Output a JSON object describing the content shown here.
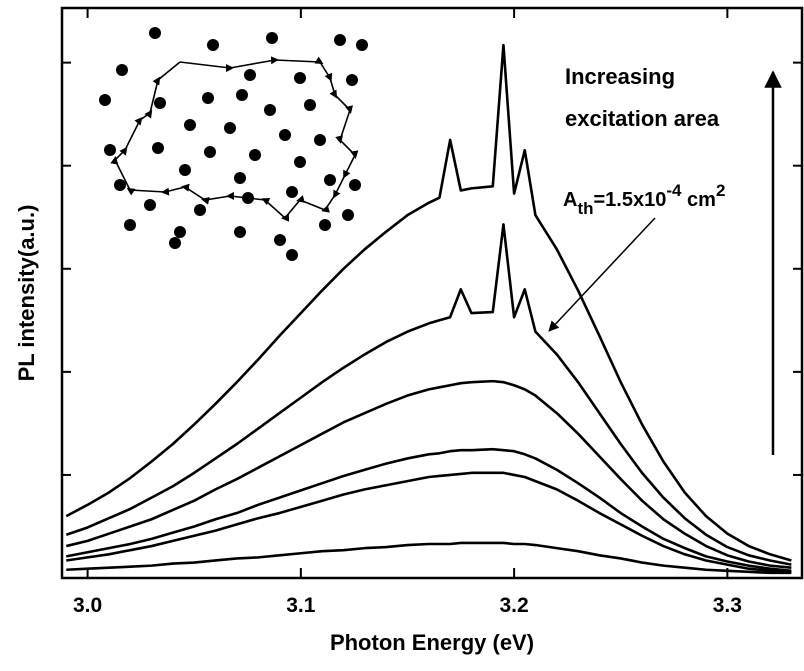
{
  "chart_data": {
    "type": "line",
    "x_label": "Photon Energy (eV)",
    "y_label": "PL intensity(a.u.)",
    "annotations": {
      "arrow_text": [
        "Increasing",
        "excitation area"
      ],
      "threshold_parts": [
        "A",
        "th",
        "=1.5x10",
        "-4",
        " cm",
        "2"
      ]
    },
    "x": [
      2.99,
      3.0,
      3.01,
      3.02,
      3.03,
      3.04,
      3.05,
      3.06,
      3.07,
      3.08,
      3.09,
      3.1,
      3.11,
      3.12,
      3.13,
      3.14,
      3.15,
      3.16,
      3.165,
      3.17,
      3.175,
      3.18,
      3.19,
      3.195,
      3.2,
      3.205,
      3.21,
      3.22,
      3.23,
      3.24,
      3.25,
      3.26,
      3.27,
      3.28,
      3.29,
      3.3,
      3.31,
      3.32,
      3.33
    ],
    "series": [
      {
        "color": "#000000",
        "values": [
          0.6,
          0.71,
          0.83,
          0.97,
          1.13,
          1.3,
          1.49,
          1.69,
          1.9,
          2.12,
          2.35,
          2.57,
          2.79,
          3.0,
          3.19,
          3.36,
          3.52,
          3.64,
          3.69,
          4.25,
          3.76,
          3.78,
          3.8,
          5.17,
          3.73,
          4.15,
          3.52,
          3.19,
          2.79,
          2.35,
          1.9,
          1.49,
          1.13,
          0.83,
          0.6,
          0.43,
          0.31,
          0.23,
          0.17
        ]
      },
      {
        "color": "#000000",
        "values": [
          0.42,
          0.49,
          0.58,
          0.67,
          0.78,
          0.89,
          1.02,
          1.16,
          1.3,
          1.45,
          1.6,
          1.75,
          1.9,
          2.04,
          2.17,
          2.29,
          2.39,
          2.47,
          2.5,
          2.53,
          2.8,
          2.57,
          2.58,
          3.43,
          2.53,
          2.8,
          2.39,
          2.17,
          1.9,
          1.6,
          1.3,
          1.02,
          0.78,
          0.58,
          0.42,
          0.3,
          0.22,
          0.17,
          0.13
        ]
      },
      {
        "color": "#000000",
        "values": [
          0.31,
          0.36,
          0.43,
          0.5,
          0.57,
          0.66,
          0.75,
          0.86,
          0.96,
          1.07,
          1.18,
          1.29,
          1.4,
          1.51,
          1.6,
          1.69,
          1.77,
          1.83,
          1.85,
          1.87,
          1.89,
          1.9,
          1.91,
          1.9,
          1.87,
          1.83,
          1.77,
          1.6,
          1.4,
          1.18,
          0.96,
          0.75,
          0.57,
          0.43,
          0.31,
          0.22,
          0.16,
          0.12,
          0.1
        ]
      },
      {
        "color": "#000000",
        "values": [
          0.21,
          0.25,
          0.29,
          0.33,
          0.38,
          0.44,
          0.5,
          0.57,
          0.63,
          0.71,
          0.78,
          0.85,
          0.92,
          0.99,
          1.05,
          1.11,
          1.16,
          1.2,
          1.21,
          1.23,
          1.24,
          1.24,
          1.25,
          1.24,
          1.23,
          1.2,
          1.16,
          1.05,
          0.92,
          0.78,
          0.63,
          0.5,
          0.38,
          0.29,
          0.21,
          0.16,
          0.12,
          0.09,
          0.07
        ]
      },
      {
        "color": "#000000",
        "values": [
          0.17,
          0.2,
          0.23,
          0.27,
          0.31,
          0.36,
          0.41,
          0.46,
          0.52,
          0.58,
          0.63,
          0.69,
          0.75,
          0.81,
          0.86,
          0.9,
          0.94,
          0.98,
          0.99,
          1.0,
          1.01,
          1.02,
          1.02,
          1.02,
          1.0,
          0.98,
          0.94,
          0.86,
          0.75,
          0.63,
          0.52,
          0.41,
          0.31,
          0.23,
          0.17,
          0.13,
          0.09,
          0.07,
          0.06
        ]
      },
      {
        "color": "#000000",
        "values": [
          0.08,
          0.09,
          0.1,
          0.11,
          0.12,
          0.14,
          0.15,
          0.17,
          0.19,
          0.2,
          0.22,
          0.24,
          0.26,
          0.27,
          0.29,
          0.3,
          0.32,
          0.33,
          0.33,
          0.33,
          0.34,
          0.34,
          0.34,
          0.34,
          0.33,
          0.33,
          0.32,
          0.29,
          0.26,
          0.22,
          0.19,
          0.15,
          0.12,
          0.1,
          0.08,
          0.07,
          0.06,
          0.05,
          0.05
        ]
      }
    ],
    "xlim": [
      2.988,
      3.335
    ],
    "xticks": [
      {
        "value": 3.0,
        "label": "3.0"
      },
      3.1,
      3.2,
      3.3
    ],
    "ylim": [
      0,
      5.53
    ],
    "yticks": [
      1,
      2,
      3,
      4,
      5
    ],
    "grid": false
  }
}
